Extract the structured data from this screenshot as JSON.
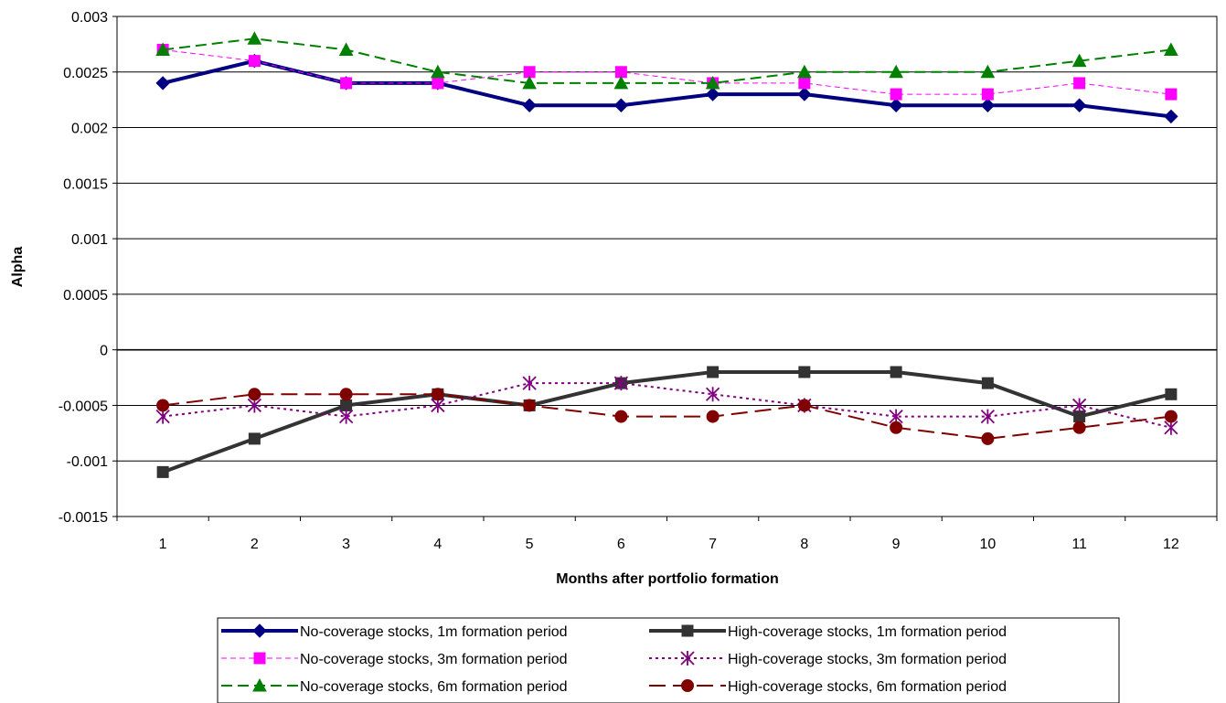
{
  "chart_data": {
    "type": "line",
    "xlabel": "Months after portfolio formation",
    "ylabel": "Alpha",
    "ylim": [
      -0.0015,
      0.003
    ],
    "yticks": [
      "0.003",
      "0.0025",
      "0.002",
      "0.0015",
      "0.001",
      "0.0005",
      "0",
      "-0.0005",
      "-0.001",
      "-0.0015"
    ],
    "ytick_values": [
      0.003,
      0.0025,
      0.002,
      0.0015,
      0.001,
      0.0005,
      0,
      -0.0005,
      -0.001,
      -0.0015
    ],
    "categories": [
      "1",
      "2",
      "3",
      "4",
      "5",
      "6",
      "7",
      "8",
      "9",
      "10",
      "11",
      "12"
    ],
    "grid": "horizontal",
    "legend_position": "bottom",
    "series": [
      {
        "name": "No-coverage stocks, 1m formation period",
        "color": "#000080",
        "dash": "solid",
        "width": 4,
        "marker": "diamond",
        "values": [
          0.0024,
          0.0026,
          0.0024,
          0.0024,
          0.0022,
          0.0022,
          0.0023,
          0.0023,
          0.0022,
          0.0022,
          0.0022,
          0.0021
        ]
      },
      {
        "name": "High-coverage stocks, 1m formation period",
        "color": "#333333",
        "dash": "solid",
        "width": 4,
        "marker": "square",
        "values": [
          -0.0011,
          -0.0008,
          -0.0005,
          -0.0004,
          -0.0005,
          -0.0003,
          -0.0002,
          -0.0002,
          -0.0002,
          -0.0003,
          -0.0006,
          -0.0004
        ]
      },
      {
        "name": "No-coverage stocks, 3m formation period",
        "color": "#FF00FF",
        "dash": "dashed-thin",
        "width": 1,
        "marker": "square",
        "values": [
          0.0027,
          0.0026,
          0.0024,
          0.0024,
          0.0025,
          0.0025,
          0.0024,
          0.0024,
          0.0023,
          0.0023,
          0.0024,
          0.0023
        ]
      },
      {
        "name": "High-coverage stocks, 3m formation period",
        "color": "#800080",
        "dash": "dotted",
        "width": 2,
        "marker": "asterisk",
        "values": [
          -0.0006,
          -0.0005,
          -0.0006,
          -0.0005,
          -0.0003,
          -0.0003,
          -0.0004,
          -0.0005,
          -0.0006,
          -0.0006,
          -0.0005,
          -0.0007
        ]
      },
      {
        "name": "No-coverage stocks, 6m formation period",
        "color": "#008000",
        "dash": "dashed",
        "width": 2,
        "marker": "triangle",
        "values": [
          0.0027,
          0.0028,
          0.0027,
          0.0025,
          0.0024,
          0.0024,
          0.0024,
          0.0025,
          0.0025,
          0.0025,
          0.0026,
          0.0027
        ]
      },
      {
        "name": "High-coverage stocks, 6m formation period",
        "color": "#800000",
        "dash": "dashed-long",
        "width": 2,
        "marker": "circle",
        "values": [
          -0.0005,
          -0.0004,
          -0.0004,
          -0.0004,
          -0.0005,
          -0.0006,
          -0.0006,
          -0.0005,
          -0.0007,
          -0.0008,
          -0.0007,
          -0.0006
        ]
      }
    ],
    "legend_order": [
      0,
      1,
      2,
      3,
      4,
      5
    ]
  }
}
